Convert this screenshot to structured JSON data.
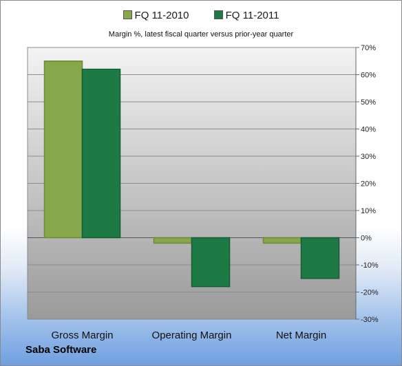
{
  "company": "Saba Software",
  "chart_data": {
    "type": "bar",
    "title": "",
    "subtitle": "Margin %,  latest fiscal quarter versus prior-year quarter",
    "xlabel": "",
    "ylabel": "",
    "categories": [
      "Gross Margin",
      "Operating Margin",
      "Net Margin"
    ],
    "series": [
      {
        "name": "FQ 11-2010",
        "values": [
          65,
          -2,
          -2
        ],
        "color": "#86a84a"
      },
      {
        "name": "FQ 11-2011",
        "values": [
          62,
          -18,
          -15
        ],
        "color": "#1e7a45"
      }
    ],
    "ylim": [
      -30,
      70
    ],
    "yticks": [
      70,
      60,
      50,
      40,
      30,
      20,
      10,
      0,
      -10,
      -20,
      -30
    ],
    "ytick_labels": [
      "70%",
      "60%",
      "50%",
      "40%",
      "30%",
      "20%",
      "10%",
      "0%",
      "-10%",
      "-20%",
      "-30%"
    ],
    "y_axis_side": "right",
    "grid": true,
    "legend_position": "top"
  }
}
